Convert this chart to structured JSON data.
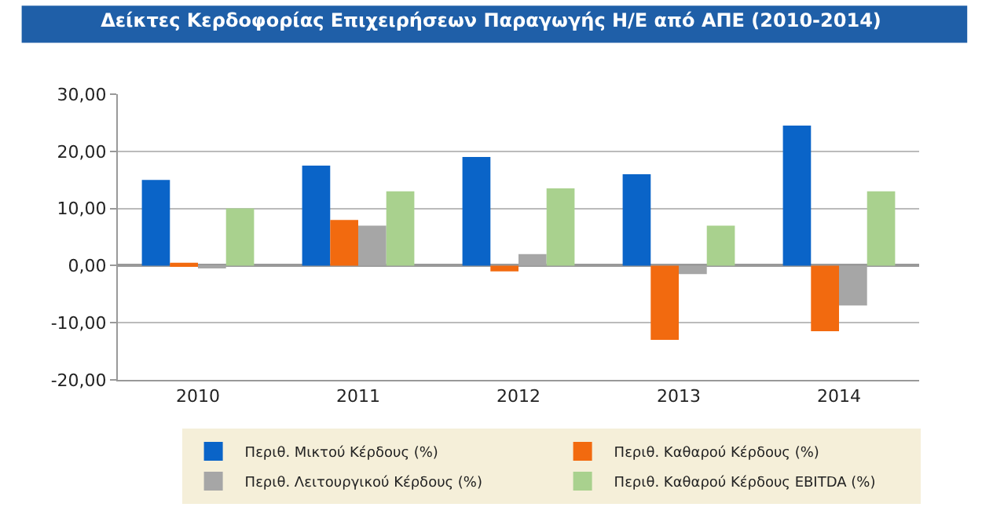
{
  "chart_data": {
    "type": "bar",
    "title": "Δείκτες Κερδοφορίας Επιχειρήσεων Παραγωγής Η/Ε από ΑΠΕ (2010-2014)",
    "categories": [
      "2010",
      "2011",
      "2012",
      "2013",
      "2014"
    ],
    "series": [
      {
        "name": "Περιθ. Μικτού Κέρδους (%)",
        "color": "#0a64c8",
        "values": [
          15,
          17.5,
          19,
          16,
          24.5
        ]
      },
      {
        "name": "Περιθ. Καθαρού Κέρδους (%)",
        "color": "#f26a0f",
        "values": [
          0.5,
          8,
          -1,
          -13,
          -11.5
        ]
      },
      {
        "name": "Περιθ. Λειτουργικού Κέρδους (%)",
        "color": "#a6a6a6",
        "values": [
          -0.5,
          7,
          2,
          -1.5,
          -7
        ]
      },
      {
        "name": "Περιθ. Καθαρού Κέρδους EBITDA (%)",
        "color": "#a9d18e",
        "values": [
          10,
          13,
          13.5,
          7,
          13
        ]
      }
    ],
    "ylim": [
      -20,
      30
    ],
    "yticks": [
      {
        "value": -20,
        "label": "-20,00"
      },
      {
        "value": -10,
        "label": "-10,00"
      },
      {
        "value": 0,
        "label": "0,00"
      },
      {
        "value": 10,
        "label": "10,00"
      },
      {
        "value": 20,
        "label": "20,00"
      },
      {
        "value": 30,
        "label": "30,00"
      }
    ],
    "grid": "y",
    "legend": "bottom"
  }
}
